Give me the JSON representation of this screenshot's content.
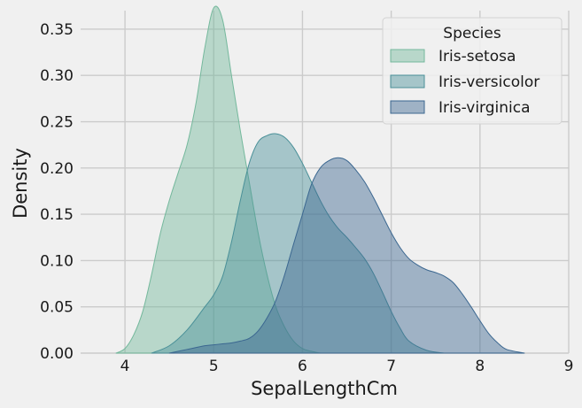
{
  "chart_data": {
    "type": "area",
    "title": "",
    "xlabel": "SepalLengthCm",
    "ylabel": "Density",
    "xlim": [
      3.5,
      9.0
    ],
    "ylim": [
      0.0,
      0.37
    ],
    "x_ticks": [
      4,
      5,
      6,
      7,
      8,
      9
    ],
    "y_ticks": [
      0.0,
      0.05,
      0.1,
      0.15,
      0.2,
      0.25,
      0.3,
      0.35
    ],
    "y_tick_labels": [
      "0.00",
      "0.05",
      "0.10",
      "0.15",
      "0.20",
      "0.25",
      "0.30",
      "0.35"
    ],
    "grid": true,
    "legend": {
      "title": "Species",
      "placement": "top-right"
    },
    "series": [
      {
        "name": "Iris-setosa",
        "color": "#74b89c",
        "x": [
          3.9,
          4.0,
          4.1,
          4.2,
          4.3,
          4.4,
          4.5,
          4.6,
          4.7,
          4.8,
          4.9,
          5.0,
          5.1,
          5.2,
          5.3,
          5.4,
          5.5,
          5.6,
          5.7,
          5.8,
          5.9,
          6.0,
          6.1,
          6.2
        ],
        "values": [
          0.0,
          0.005,
          0.02,
          0.045,
          0.085,
          0.13,
          0.165,
          0.195,
          0.225,
          0.27,
          0.33,
          0.373,
          0.36,
          0.3,
          0.24,
          0.185,
          0.13,
          0.085,
          0.05,
          0.028,
          0.013,
          0.005,
          0.002,
          0.0
        ]
      },
      {
        "name": "Iris-versicolor",
        "color": "#4a9098",
        "x": [
          4.3,
          4.5,
          4.7,
          4.9,
          5.0,
          5.1,
          5.2,
          5.3,
          5.4,
          5.5,
          5.6,
          5.7,
          5.8,
          5.9,
          6.0,
          6.1,
          6.2,
          6.3,
          6.4,
          6.5,
          6.6,
          6.7,
          6.8,
          6.9,
          7.0,
          7.1,
          7.2,
          7.4,
          7.6
        ],
        "values": [
          0.0,
          0.008,
          0.025,
          0.05,
          0.063,
          0.083,
          0.12,
          0.165,
          0.205,
          0.228,
          0.235,
          0.237,
          0.233,
          0.222,
          0.205,
          0.185,
          0.165,
          0.148,
          0.135,
          0.125,
          0.114,
          0.102,
          0.086,
          0.066,
          0.045,
          0.027,
          0.013,
          0.003,
          0.0
        ]
      },
      {
        "name": "Iris-virginica",
        "color": "#3b6790",
        "x": [
          4.5,
          4.7,
          4.9,
          5.0,
          5.1,
          5.2,
          5.3,
          5.4,
          5.5,
          5.6,
          5.7,
          5.8,
          5.9,
          6.0,
          6.1,
          6.2,
          6.3,
          6.4,
          6.5,
          6.6,
          6.7,
          6.8,
          6.9,
          7.0,
          7.1,
          7.2,
          7.3,
          7.4,
          7.5,
          7.6,
          7.7,
          7.8,
          7.9,
          8.0,
          8.1,
          8.2,
          8.3,
          8.5
        ],
        "values": [
          0.0,
          0.004,
          0.008,
          0.009,
          0.01,
          0.011,
          0.013,
          0.016,
          0.024,
          0.038,
          0.057,
          0.085,
          0.118,
          0.15,
          0.182,
          0.2,
          0.208,
          0.211,
          0.208,
          0.198,
          0.185,
          0.168,
          0.149,
          0.13,
          0.114,
          0.102,
          0.095,
          0.09,
          0.087,
          0.083,
          0.076,
          0.064,
          0.05,
          0.035,
          0.021,
          0.011,
          0.004,
          0.0
        ]
      }
    ]
  }
}
